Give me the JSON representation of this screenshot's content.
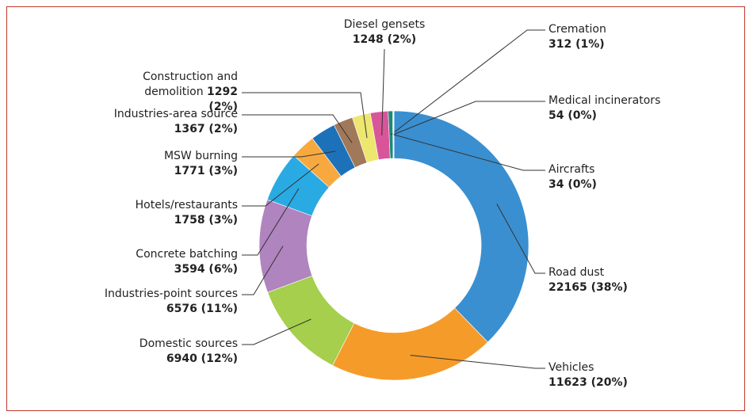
{
  "chart_data": {
    "type": "donut",
    "categories": [
      "Road dust",
      "Vehicles",
      "Domestic sources",
      "Industries-point sources",
      "Concrete batching",
      "Hotels/restaurants",
      "MSW burning",
      "Industries-area source",
      "Construction and demolition",
      "Diesel gensets",
      "Cremation",
      "Medical incinerators",
      "Aircrafts"
    ],
    "values": [
      22165,
      11623,
      6940,
      6576,
      3594,
      1758,
      1771,
      1367,
      1292,
      1248,
      312,
      54,
      34
    ],
    "value_labels": [
      "22165 (38%)",
      "11623 (20%)",
      "6940 (12%)",
      "6576 (11%)",
      "3594 (6%)",
      "1758 (3%)",
      "1771 (3%)",
      "1367 (2%)",
      "1292 (2%)",
      "1248 (2%)",
      "312 (1%)",
      "54 (0%)",
      "34 (0%)"
    ],
    "colors": [
      "#3a8fd0",
      "#f59b2a",
      "#a5cf4c",
      "#b084bf",
      "#2aaae2",
      "#f7a940",
      "#1d71b8",
      "#a0785a",
      "#ede66f",
      "#d9559a",
      "#1a8a7a",
      "#69b545",
      "#c9a63a"
    ]
  }
}
